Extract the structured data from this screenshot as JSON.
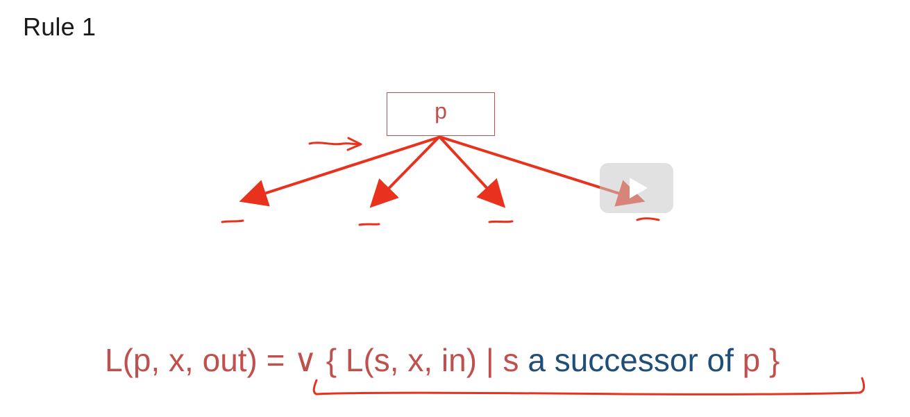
{
  "slide": {
    "title": "Rule 1",
    "node_label": "p",
    "formula": {
      "lhs": "L(p, x, out) = ",
      "op": "∨ { L(s, x, in) | s ",
      "middle": "a successor of",
      "var": " p",
      "close": " }"
    }
  },
  "colors": {
    "accent": "#c0504d",
    "ink_red": "#e8321e",
    "formula_blue": "#1f4e79",
    "title": "#1a1a1a"
  },
  "icons": {
    "play": "play-icon"
  }
}
